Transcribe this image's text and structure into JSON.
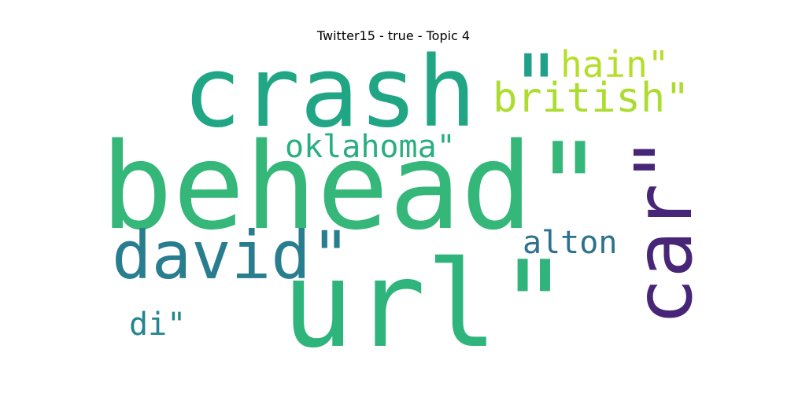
{
  "chart_data": {
    "type": "wordcloud",
    "title": "Twitter15 - true - Topic 4",
    "words": [
      {
        "text": "behead\"",
        "color": "#35b779",
        "rank": 1
      },
      {
        "text": "url\"",
        "color": "#2fb47c",
        "rank": 2
      },
      {
        "text": "crash",
        "color": "#21a685",
        "rank": 3
      },
      {
        "text": "car\"",
        "color": "#482677",
        "rank": 4
      },
      {
        "text": "david\"",
        "color": "#287d8e",
        "rank": 5
      },
      {
        "text": "\"",
        "color": "#1fa088",
        "rank": 6
      },
      {
        "text": "british\"",
        "color": "#addc30",
        "rank": 7
      },
      {
        "text": "hain\"",
        "color": "#b5de2b",
        "rank": 8
      },
      {
        "text": "oklahoma\"",
        "color": "#29af7f",
        "rank": 9
      },
      {
        "text": "alton",
        "color": "#2c728e",
        "rank": 10
      },
      {
        "text": "di\"",
        "color": "#25858e",
        "rank": 11
      }
    ]
  }
}
